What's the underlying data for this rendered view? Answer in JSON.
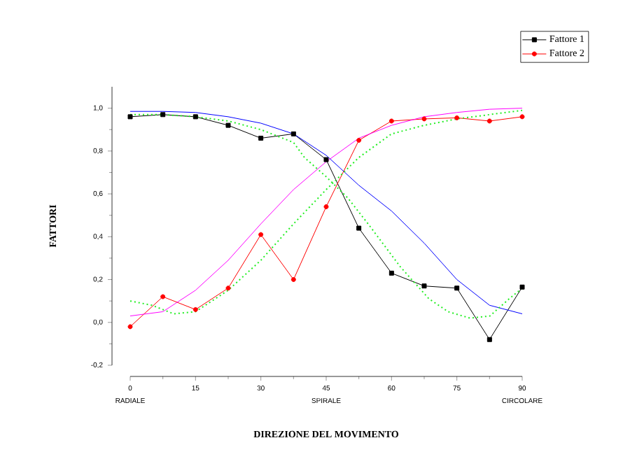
{
  "chart_data": {
    "type": "line",
    "xlabel": "DIREZIONE DEL MOVIMENTO",
    "ylabel": "FATTORI",
    "x": [
      0,
      7.5,
      15,
      22.5,
      30,
      37.5,
      45,
      52.5,
      60,
      67.5,
      75,
      82.5,
      90
    ],
    "series": [
      {
        "name": "Fattore  1",
        "color": "#000000",
        "marker": "square",
        "values": [
          0.96,
          0.97,
          0.96,
          0.92,
          0.86,
          0.88,
          0.76,
          0.44,
          0.23,
          0.17,
          0.16,
          -0.08,
          0.165
        ]
      },
      {
        "name": "Fattore  2",
        "color": "#ff0000",
        "marker": "circle",
        "values": [
          -0.02,
          0.12,
          0.06,
          0.16,
          0.41,
          0.2,
          0.54,
          0.85,
          0.94,
          0.95,
          0.955,
          0.94,
          0.96
        ]
      },
      {
        "color": "#0000ff",
        "marker": "none",
        "values": [
          0.985,
          0.985,
          0.98,
          0.96,
          0.93,
          0.88,
          0.78,
          0.64,
          0.52,
          0.37,
          0.2,
          0.08,
          0.04
        ]
      },
      {
        "color": "#ff00ff",
        "marker": "none",
        "values": [
          0.03,
          0.05,
          0.15,
          0.29,
          0.46,
          0.62,
          0.75,
          0.86,
          0.92,
          0.96,
          0.98,
          0.995,
          1.0
        ]
      },
      {
        "color": "#22ee22",
        "marker": "none",
        "line_style": "dotted",
        "x": [
          0,
          7.5,
          15,
          22.5,
          30,
          37.5,
          40,
          45,
          50,
          55,
          62,
          68.6,
          73,
          78,
          82.6,
          87,
          90
        ],
        "values": [
          0.97,
          0.97,
          0.96,
          0.94,
          0.9,
          0.84,
          0.77,
          0.68,
          0.58,
          0.45,
          0.26,
          0.11,
          0.05,
          0.02,
          0.03,
          0.11,
          0.16
        ]
      },
      {
        "color": "#22ee22",
        "marker": "none",
        "line_style": "dotted",
        "x": [
          0,
          5,
          10,
          15,
          22.5,
          30,
          37.5,
          45,
          52.5,
          60,
          67.5,
          75,
          82.5,
          90
        ],
        "values": [
          0.1,
          0.08,
          0.04,
          0.05,
          0.15,
          0.29,
          0.46,
          0.62,
          0.77,
          0.88,
          0.92,
          0.95,
          0.97,
          0.99
        ]
      }
    ],
    "xlim": [
      0,
      90
    ],
    "xticks": [
      0,
      15,
      30,
      45,
      60,
      75,
      90
    ],
    "ylim": [
      -0.2,
      1.1
    ],
    "yticks": [
      {
        "value": -0.2,
        "label": "-0,2"
      },
      {
        "value": 0,
        "label": "0,0"
      },
      {
        "value": 0.2,
        "label": "0,2"
      },
      {
        "value": 0.4,
        "label": "0,4"
      },
      {
        "value": 0.6,
        "label": "0,6"
      },
      {
        "value": 0.8,
        "label": "0,8"
      },
      {
        "value": 1.0,
        "label": "1,0"
      }
    ],
    "annotations": [
      "RADIALE",
      "SPIRALE",
      "CIRCOLARE"
    ],
    "legend": "top right"
  }
}
